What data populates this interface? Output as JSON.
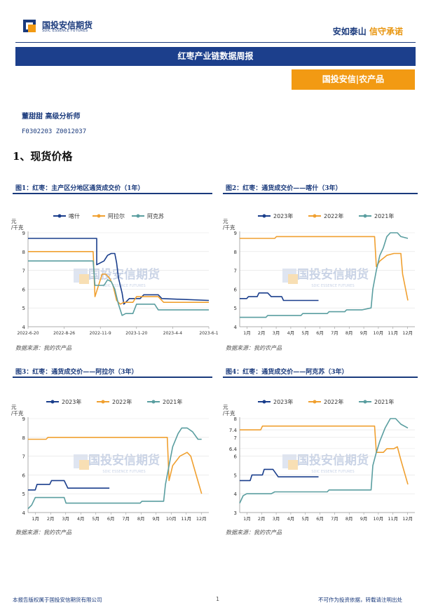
{
  "header": {
    "logo_text": "国投安信期货",
    "logo_sub": "SDIC ESSENCE FUTURES",
    "slogan_main": "安如泰山",
    "slogan_accent": "信守承诺",
    "banner_title": "红枣产业链数据周报",
    "tag": "国投安信|农产品"
  },
  "author": "董甜甜 高级分析师",
  "license": "F0302203 Z0012037",
  "section_title": "1、现货价格",
  "watermark": {
    "main": "国投安信期货",
    "sub": "SDIC ESSENCE FUTURES"
  },
  "colors": {
    "dark_blue": "#1a3e8c",
    "orange": "#f0a030",
    "teal": "#5a9ea0"
  },
  "figures": [
    {
      "title": "图1：红枣：主产区分地区通货成交价（1年）",
      "source": "数据来源：我的农产品",
      "unit": "元\n/千克",
      "chart_data": {
        "type": "line",
        "y_ticks": [
          "9",
          "8",
          "7",
          "6",
          "5",
          "4"
        ],
        "ylim": [
          4,
          9
        ],
        "x_ticks": [
          "2022-6-20",
          "2022-8-26",
          "2022-11-9",
          "2023-1-20",
          "2023-4-4",
          "2023-6-1"
        ],
        "series": [
          {
            "name": "喀什",
            "color": "#1a3e8c",
            "points": [
              [
                0,
                8.7
              ],
              [
                0.38,
                8.7
              ],
              [
                0.38,
                7.3
              ],
              [
                0.42,
                7.5
              ],
              [
                0.44,
                7.8
              ],
              [
                0.46,
                7.9
              ],
              [
                0.48,
                7.9
              ],
              [
                0.49,
                7.4
              ],
              [
                0.5,
                6.6
              ],
              [
                0.52,
                5.8
              ],
              [
                0.53,
                5.2
              ],
              [
                0.56,
                5.5
              ],
              [
                0.62,
                5.5
              ],
              [
                0.64,
                5.7
              ],
              [
                0.72,
                5.7
              ],
              [
                0.74,
                5.5
              ],
              [
                1.0,
                5.4
              ]
            ]
          },
          {
            "name": "阿拉尔",
            "color": "#f0a030",
            "points": [
              [
                0,
                8.0
              ],
              [
                0.36,
                8.0
              ],
              [
                0.37,
                5.6
              ],
              [
                0.39,
                6.2
              ],
              [
                0.41,
                6.8
              ],
              [
                0.43,
                6.8
              ],
              [
                0.45,
                6.6
              ],
              [
                0.47,
                6.2
              ],
              [
                0.49,
                5.4
              ],
              [
                0.51,
                5.2
              ],
              [
                0.53,
                5.3
              ],
              [
                0.58,
                5.3
              ],
              [
                0.6,
                5.6
              ],
              [
                0.72,
                5.6
              ],
              [
                0.75,
                5.3
              ],
              [
                1.0,
                5.3
              ]
            ]
          },
          {
            "name": "阿克苏",
            "color": "#5a9ea0",
            "points": [
              [
                0,
                7.5
              ],
              [
                0.36,
                7.5
              ],
              [
                0.37,
                6.2
              ],
              [
                0.42,
                6.2
              ],
              [
                0.44,
                6.5
              ],
              [
                0.46,
                6.4
              ],
              [
                0.48,
                6.0
              ],
              [
                0.5,
                5.2
              ],
              [
                0.52,
                4.6
              ],
              [
                0.54,
                4.7
              ],
              [
                0.58,
                4.7
              ],
              [
                0.6,
                5.2
              ],
              [
                0.7,
                5.2
              ],
              [
                0.72,
                4.9
              ],
              [
                1.0,
                4.9
              ]
            ]
          }
        ]
      }
    },
    {
      "title": "图2：红枣：通货成交价——喀什（3年）",
      "source": "数据来源：我的农产品",
      "unit": "元\n/千克",
      "chart_data": {
        "type": "line",
        "y_ticks": [
          "9",
          "8",
          "7",
          "6",
          "5",
          "4"
        ],
        "ylim": [
          4,
          9
        ],
        "x_ticks": [
          "1月",
          "2月",
          "3月",
          "4月",
          "5月",
          "6月",
          "7月",
          "8月",
          "9月",
          "10月",
          "11月",
          "12月"
        ],
        "series": [
          {
            "name": "2023年",
            "color": "#1a3e8c",
            "points": [
              [
                0,
                5.5
              ],
              [
                0.04,
                5.5
              ],
              [
                0.05,
                5.6
              ],
              [
                0.1,
                5.6
              ],
              [
                0.11,
                5.8
              ],
              [
                0.16,
                5.8
              ],
              [
                0.18,
                5.6
              ],
              [
                0.24,
                5.6
              ],
              [
                0.25,
                5.4
              ],
              [
                0.45,
                5.4
              ]
            ]
          },
          {
            "name": "2022年",
            "color": "#f0a030",
            "points": [
              [
                0,
                8.7
              ],
              [
                0.2,
                8.7
              ],
              [
                0.21,
                8.8
              ],
              [
                0.77,
                8.8
              ],
              [
                0.78,
                7.2
              ],
              [
                0.8,
                7.5
              ],
              [
                0.84,
                7.8
              ],
              [
                0.88,
                7.9
              ],
              [
                0.92,
                7.9
              ],
              [
                0.93,
                6.8
              ],
              [
                0.96,
                5.4
              ]
            ]
          },
          {
            "name": "2021年",
            "color": "#5a9ea0",
            "points": [
              [
                0,
                4.5
              ],
              [
                0.15,
                4.5
              ],
              [
                0.16,
                4.6
              ],
              [
                0.35,
                4.6
              ],
              [
                0.36,
                4.7
              ],
              [
                0.5,
                4.7
              ],
              [
                0.51,
                4.8
              ],
              [
                0.6,
                4.8
              ],
              [
                0.61,
                4.9
              ],
              [
                0.7,
                4.9
              ],
              [
                0.75,
                5.0
              ],
              [
                0.76,
                6.0
              ],
              [
                0.78,
                7.0
              ],
              [
                0.8,
                7.8
              ],
              [
                0.82,
                8.2
              ],
              [
                0.84,
                8.8
              ],
              [
                0.86,
                9.0
              ],
              [
                0.9,
                9.0
              ],
              [
                0.92,
                8.8
              ],
              [
                0.96,
                8.7
              ]
            ]
          }
        ]
      }
    },
    {
      "title": "图3：红枣：通货成交价——阿拉尔（3年）",
      "source": "数据来源：我的农产品",
      "unit": "元\n/千克",
      "chart_data": {
        "type": "line",
        "y_ticks": [
          "9",
          "8",
          "7",
          "6",
          "5",
          "4"
        ],
        "ylim": [
          4,
          9
        ],
        "x_ticks": [
          "1月",
          "2月",
          "3月",
          "4月",
          "5月",
          "6月",
          "7月",
          "8月",
          "9月",
          "10月",
          "11月",
          "12月"
        ],
        "series": [
          {
            "name": "2023年",
            "color": "#1a3e8c",
            "points": [
              [
                0,
                5.2
              ],
              [
                0.04,
                5.2
              ],
              [
                0.05,
                5.5
              ],
              [
                0.12,
                5.5
              ],
              [
                0.13,
                5.7
              ],
              [
                0.2,
                5.7
              ],
              [
                0.22,
                5.3
              ],
              [
                0.45,
                5.3
              ]
            ]
          },
          {
            "name": "2022年",
            "color": "#f0a030",
            "points": [
              [
                0,
                7.9
              ],
              [
                0.1,
                7.9
              ],
              [
                0.11,
                8.0
              ],
              [
                0.77,
                8.0
              ],
              [
                0.78,
                5.7
              ],
              [
                0.8,
                6.5
              ],
              [
                0.84,
                7.0
              ],
              [
                0.88,
                7.2
              ],
              [
                0.9,
                7.0
              ],
              [
                0.93,
                6.0
              ],
              [
                0.96,
                5.0
              ]
            ]
          },
          {
            "name": "2021年",
            "color": "#5a9ea0",
            "points": [
              [
                0,
                4.2
              ],
              [
                0.02,
                4.4
              ],
              [
                0.04,
                4.8
              ],
              [
                0.2,
                4.8
              ],
              [
                0.21,
                4.5
              ],
              [
                0.62,
                4.5
              ],
              [
                0.63,
                4.6
              ],
              [
                0.75,
                4.6
              ],
              [
                0.76,
                5.5
              ],
              [
                0.78,
                6.5
              ],
              [
                0.8,
                7.5
              ],
              [
                0.83,
                8.2
              ],
              [
                0.85,
                8.5
              ],
              [
                0.88,
                8.5
              ],
              [
                0.91,
                8.3
              ],
              [
                0.94,
                7.9
              ],
              [
                0.96,
                7.9
              ]
            ]
          }
        ]
      }
    },
    {
      "title": "图4：红枣：通货成交价——阿克苏（3年）",
      "source": "数据来源：我的农产品",
      "unit": "元\n/千克",
      "chart_data": {
        "type": "line",
        "y_ticks": [
          "8",
          "7.4",
          "7",
          "6.4",
          "6",
          "5",
          "4",
          "3"
        ],
        "ylim": [
          3,
          8
        ],
        "x_ticks": [
          "1月",
          "2月",
          "3月",
          "4月",
          "5月",
          "6月",
          "7月",
          "8月",
          "9月",
          "10月",
          "11月",
          "12月"
        ],
        "series": [
          {
            "name": "2023年",
            "color": "#1a3e8c",
            "points": [
              [
                0,
                4.7
              ],
              [
                0.06,
                4.7
              ],
              [
                0.07,
                5.0
              ],
              [
                0.13,
                5.0
              ],
              [
                0.14,
                5.3
              ],
              [
                0.19,
                5.3
              ],
              [
                0.22,
                4.9
              ],
              [
                0.45,
                4.9
              ]
            ]
          },
          {
            "name": "2022年",
            "color": "#f0a030",
            "points": [
              [
                0,
                7.4
              ],
              [
                0.12,
                7.4
              ],
              [
                0.13,
                7.6
              ],
              [
                0.77,
                7.6
              ],
              [
                0.78,
                6.2
              ],
              [
                0.82,
                6.2
              ],
              [
                0.84,
                6.4
              ],
              [
                0.88,
                6.4
              ],
              [
                0.9,
                6.5
              ],
              [
                0.92,
                5.8
              ],
              [
                0.96,
                4.5
              ]
            ]
          },
          {
            "name": "2021年",
            "color": "#5a9ea0",
            "points": [
              [
                0,
                3.5
              ],
              [
                0.02,
                3.9
              ],
              [
                0.04,
                4.0
              ],
              [
                0.18,
                4.0
              ],
              [
                0.2,
                4.1
              ],
              [
                0.5,
                4.1
              ],
              [
                0.51,
                4.2
              ],
              [
                0.75,
                4.2
              ],
              [
                0.76,
                5.5
              ],
              [
                0.78,
                6.2
              ],
              [
                0.8,
                6.8
              ],
              [
                0.83,
                7.5
              ],
              [
                0.86,
                8.0
              ],
              [
                0.89,
                8.0
              ],
              [
                0.92,
                7.7
              ],
              [
                0.96,
                7.5
              ]
            ]
          }
        ]
      }
    }
  ],
  "footer": {
    "left": "本报告版权属于国投安信期货有限公司",
    "page": "1",
    "right": "不可作为投资依据，转载请注明出处"
  }
}
